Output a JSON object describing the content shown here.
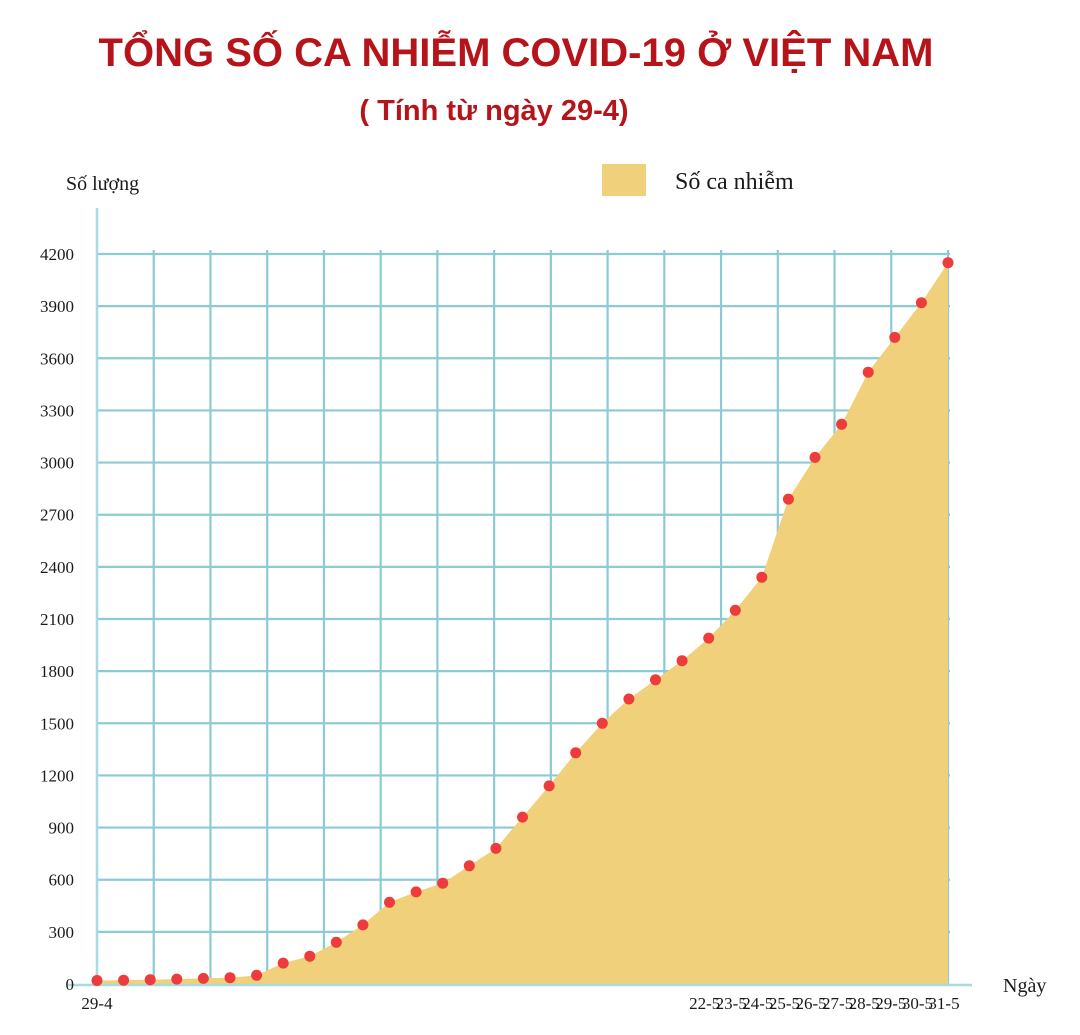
{
  "chart_data": {
    "type": "area",
    "title": "TỔNG SỐ CA NHIỄM COVID-19 Ở VIỆT NAM",
    "subtitle": "( Tính từ ngày 29-4)",
    "ylabel": "Số lượng",
    "xlabel": "Ngày",
    "ylim": [
      0,
      4200
    ],
    "grid": true,
    "legend_position": "top-right",
    "y_ticks": [
      0,
      300,
      600,
      900,
      1200,
      1500,
      1800,
      2100,
      2400,
      2700,
      3000,
      3300,
      3600,
      3900,
      4200
    ],
    "x_ticks": [
      {
        "day": 0,
        "label": "29-4"
      },
      {
        "day": 23,
        "label": "22-5"
      },
      {
        "day": 24,
        "label": "23-5"
      },
      {
        "day": 25,
        "label": "24-5"
      },
      {
        "day": 26,
        "label": "25-5"
      },
      {
        "day": 27,
        "label": "26-5"
      },
      {
        "day": 28,
        "label": "27-5"
      },
      {
        "day": 29,
        "label": "28-5"
      },
      {
        "day": 30,
        "label": "29-5"
      },
      {
        "day": 31,
        "label": "30-5"
      },
      {
        "day": 32,
        "label": "31-5"
      }
    ],
    "series": [
      {
        "name": "Số ca nhiễm",
        "color": "#f0d07a",
        "points": [
          {
            "day": 0,
            "value": 20
          },
          {
            "day": 1,
            "value": 22
          },
          {
            "day": 2,
            "value": 25
          },
          {
            "day": 3,
            "value": 28
          },
          {
            "day": 4,
            "value": 32
          },
          {
            "day": 5,
            "value": 36
          },
          {
            "day": 6,
            "value": 50
          },
          {
            "day": 7,
            "value": 120
          },
          {
            "day": 8,
            "value": 160
          },
          {
            "day": 9,
            "value": 240
          },
          {
            "day": 10,
            "value": 340
          },
          {
            "day": 11,
            "value": 470
          },
          {
            "day": 12,
            "value": 530
          },
          {
            "day": 13,
            "value": 580
          },
          {
            "day": 14,
            "value": 680
          },
          {
            "day": 15,
            "value": 780
          },
          {
            "day": 16,
            "value": 960
          },
          {
            "day": 17,
            "value": 1140
          },
          {
            "day": 18,
            "value": 1330
          },
          {
            "day": 19,
            "value": 1500
          },
          {
            "day": 20,
            "value": 1640
          },
          {
            "day": 21,
            "value": 1750
          },
          {
            "day": 22,
            "value": 1860
          },
          {
            "day": 23,
            "value": 1990
          },
          {
            "day": 24,
            "value": 2150
          },
          {
            "day": 25,
            "value": 2340
          },
          {
            "day": 26,
            "value": 2790
          },
          {
            "day": 27,
            "value": 3030
          },
          {
            "day": 28,
            "value": 3220
          },
          {
            "day": 29,
            "value": 3520
          },
          {
            "day": 30,
            "value": 3720
          },
          {
            "day": 31,
            "value": 3920
          },
          {
            "day": 32,
            "value": 4150
          }
        ]
      }
    ],
    "marker_color": "#ee3b3b",
    "grid_color": "#8ccbd6"
  }
}
